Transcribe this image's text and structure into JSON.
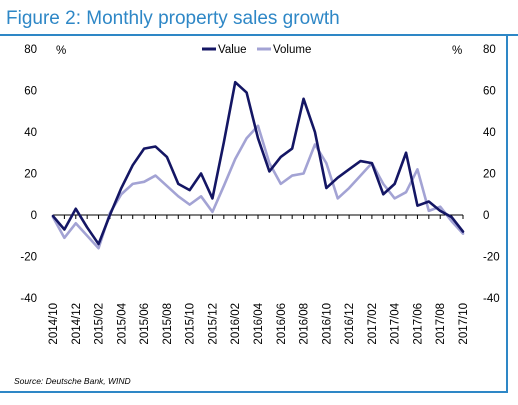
{
  "header": {
    "title": "Figure 2: Monthly property sales growth"
  },
  "footer": {
    "source": "Source: Deutsche Bank, WIND"
  },
  "colors": {
    "accent": "#2e87c6",
    "value_series": "#141664",
    "volume_series": "#a3a3d4"
  },
  "chart_data": {
    "type": "line",
    "title": "Figure 2: Monthly property sales growth",
    "ylabel_left": "%",
    "ylabel_right": "%",
    "ylim": [
      -40,
      80
    ],
    "yticks": [
      -40,
      -20,
      0,
      20,
      40,
      60,
      80
    ],
    "grid": false,
    "legend_placement": "top-center",
    "x": [
      "2014/10",
      "2014/11",
      "2014/12",
      "2015/01",
      "2015/02",
      "2015/03",
      "2015/04",
      "2015/05",
      "2015/06",
      "2015/07",
      "2015/08",
      "2015/09",
      "2015/10",
      "2015/11",
      "2015/12",
      "2016/01",
      "2016/02",
      "2016/03",
      "2016/04",
      "2016/05",
      "2016/06",
      "2016/07",
      "2016/08",
      "2016/09",
      "2016/10",
      "2016/11",
      "2016/12",
      "2017/01",
      "2017/02",
      "2017/03",
      "2017/04",
      "2017/05",
      "2017/06",
      "2017/07",
      "2017/08",
      "2017/09",
      "2017/10"
    ],
    "xtick_labels": [
      "2014/10",
      "2014/12",
      "2015/02",
      "2015/04",
      "2015/06",
      "2015/08",
      "2015/10",
      "2015/12",
      "2016/02",
      "2016/04",
      "2016/06",
      "2016/08",
      "2016/10",
      "2016/12",
      "2017/02",
      "2017/04",
      "2017/06",
      "2017/08",
      "2017/10"
    ],
    "series": [
      {
        "name": "Value",
        "color": "#141664",
        "values": [
          -0.5,
          -7,
          3,
          -6,
          -14,
          0,
          13,
          24,
          32,
          33,
          28,
          15,
          12,
          20,
          8,
          35,
          64,
          59,
          37,
          21,
          28,
          32,
          56,
          40,
          13,
          18,
          22,
          26,
          25,
          10,
          15,
          30,
          4.5,
          6.5,
          2,
          -1,
          -8
        ]
      },
      {
        "name": "Volume",
        "color": "#a3a3d4",
        "values": [
          -1,
          -11,
          -4,
          -10,
          -16,
          1,
          10,
          15,
          16,
          19,
          14,
          9,
          5,
          9,
          1.5,
          14,
          27,
          37,
          43,
          25,
          15,
          19,
          20,
          34,
          25,
          8,
          13,
          19,
          25,
          15,
          8,
          11,
          22,
          2,
          4,
          -3,
          -9
        ]
      }
    ]
  }
}
